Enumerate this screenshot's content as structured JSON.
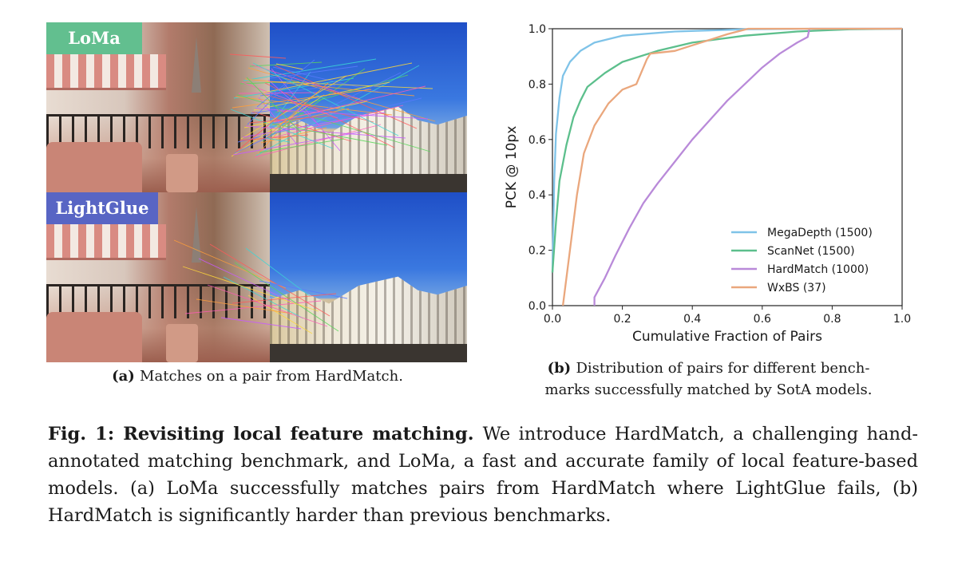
{
  "panel_a": {
    "tag_top": "LoMa",
    "tag_bottom": "LightGlue",
    "caption_label": "(a)",
    "caption_text": "Matches on a pair from HardMatch."
  },
  "panel_b": {
    "caption_label": "(b)",
    "caption_text": "Distribution of pairs for different benchmarks successfully matched by SotA models.",
    "caption_line1": "Distribution of pairs for different bench-",
    "caption_line2": "marks successfully matched by SotA models."
  },
  "figure": {
    "label": "Fig. 1:",
    "title": "Revisiting local feature matching.",
    "body": "We introduce HardMatch, a challenging hand-annotated matching benchmark, and LoMa, a fast and accurate family of local feature-based models. (a) LoMa successfully matches pairs from HardMatch where LightGlue fails, (b) HardMatch is significantly harder than previous benchmarks."
  },
  "chart_data": {
    "type": "line",
    "title": "",
    "xlabel": "Cumulative Fraction of Pairs",
    "ylabel": "PCK @ 10px",
    "xlim": [
      0,
      1
    ],
    "ylim": [
      0,
      1
    ],
    "x_ticks": [
      "0.0",
      "0.2",
      "0.4",
      "0.6",
      "0.8",
      "1.0"
    ],
    "y_ticks": [
      "0.0",
      "0.2",
      "0.4",
      "0.6",
      "0.8",
      "1.0"
    ],
    "grid": false,
    "legend_position": "bottom-right",
    "series": [
      {
        "name": "MegaDepth (1500)",
        "color": "#7fc3e8",
        "points": [
          [
            0,
            0.12
          ],
          [
            0.005,
            0.45
          ],
          [
            0.01,
            0.62
          ],
          [
            0.02,
            0.75
          ],
          [
            0.03,
            0.83
          ],
          [
            0.05,
            0.88
          ],
          [
            0.08,
            0.92
          ],
          [
            0.12,
            0.95
          ],
          [
            0.2,
            0.975
          ],
          [
            0.35,
            0.99
          ],
          [
            0.55,
            0.998
          ],
          [
            0.75,
            1.0
          ],
          [
            1.0,
            1.0
          ]
        ]
      },
      {
        "name": "ScanNet (1500)",
        "color": "#5cbf8c",
        "points": [
          [
            0,
            0.12
          ],
          [
            0.01,
            0.3
          ],
          [
            0.02,
            0.45
          ],
          [
            0.04,
            0.58
          ],
          [
            0.06,
            0.68
          ],
          [
            0.08,
            0.74
          ],
          [
            0.1,
            0.79
          ],
          [
            0.15,
            0.84
          ],
          [
            0.2,
            0.88
          ],
          [
            0.3,
            0.92
          ],
          [
            0.4,
            0.95
          ],
          [
            0.55,
            0.975
          ],
          [
            0.7,
            0.99
          ],
          [
            0.85,
            0.998
          ],
          [
            1.0,
            1.0
          ]
        ]
      },
      {
        "name": "HardMatch (1000)",
        "color": "#b98ad9",
        "points": [
          [
            0.12,
            0.0
          ],
          [
            0.12,
            0.03
          ],
          [
            0.15,
            0.1
          ],
          [
            0.18,
            0.18
          ],
          [
            0.22,
            0.28
          ],
          [
            0.26,
            0.37
          ],
          [
            0.3,
            0.44
          ],
          [
            0.35,
            0.52
          ],
          [
            0.4,
            0.6
          ],
          [
            0.45,
            0.67
          ],
          [
            0.5,
            0.74
          ],
          [
            0.55,
            0.8
          ],
          [
            0.6,
            0.86
          ],
          [
            0.65,
            0.91
          ],
          [
            0.7,
            0.95
          ],
          [
            0.73,
            0.97
          ],
          [
            0.735,
            1.0
          ],
          [
            1.0,
            1.0
          ]
        ]
      },
      {
        "name": "WxBS (37)",
        "color": "#eaa77d",
        "points": [
          [
            0.03,
            0.0
          ],
          [
            0.05,
            0.2
          ],
          [
            0.07,
            0.4
          ],
          [
            0.09,
            0.55
          ],
          [
            0.12,
            0.65
          ],
          [
            0.16,
            0.73
          ],
          [
            0.2,
            0.78
          ],
          [
            0.24,
            0.8
          ],
          [
            0.27,
            0.89
          ],
          [
            0.28,
            0.91
          ],
          [
            0.35,
            0.92
          ],
          [
            0.4,
            0.94
          ],
          [
            0.45,
            0.96
          ],
          [
            0.5,
            0.98
          ],
          [
            0.56,
            1.0
          ],
          [
            1.0,
            1.0
          ]
        ]
      }
    ]
  }
}
